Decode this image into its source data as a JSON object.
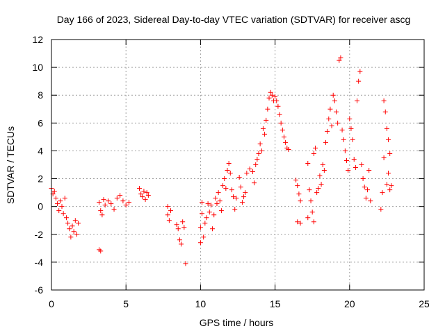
{
  "chart_data": {
    "type": "scatter",
    "title": "Day 166 of 2023, Sidereal Day-to-day VTEC variation (SDTVAR) for receiver ascg",
    "xlabel": "GPS time / hours",
    "ylabel": "SDTVAR / TECUs",
    "xlim": [
      0,
      25
    ],
    "ylim": [
      -6,
      12
    ],
    "xticks": [
      "0",
      "5",
      "10",
      "15",
      "20",
      "25"
    ],
    "yticks": [
      "-6",
      "-4",
      "-2",
      "0",
      "2",
      "4",
      "6",
      "8",
      "10",
      "12"
    ],
    "grid": true,
    "marker": "+",
    "series": [
      {
        "name": "SDTVAR",
        "color": "#ff0000",
        "points": [
          [
            0.0,
            1.3
          ],
          [
            0.1,
            0.9
          ],
          [
            0.2,
            1.1
          ],
          [
            0.3,
            0.6
          ],
          [
            0.4,
            0.2
          ],
          [
            0.5,
            -0.3
          ],
          [
            0.6,
            0.4
          ],
          [
            0.7,
            0.0
          ],
          [
            0.8,
            -0.5
          ],
          [
            0.9,
            0.6
          ],
          [
            1.0,
            -0.8
          ],
          [
            1.1,
            -1.2
          ],
          [
            1.2,
            -1.6
          ],
          [
            1.3,
            -2.2
          ],
          [
            1.4,
            -1.4
          ],
          [
            1.5,
            -1.8
          ],
          [
            1.6,
            -1.0
          ],
          [
            1.7,
            -2.0
          ],
          [
            1.8,
            -1.2
          ],
          [
            3.2,
            -3.1
          ],
          [
            3.3,
            -3.2
          ],
          [
            3.2,
            0.3
          ],
          [
            3.3,
            -0.3
          ],
          [
            3.4,
            -0.6
          ],
          [
            3.5,
            0.5
          ],
          [
            3.6,
            0.1
          ],
          [
            3.8,
            0.4
          ],
          [
            4.0,
            0.2
          ],
          [
            4.2,
            -0.2
          ],
          [
            4.4,
            0.6
          ],
          [
            4.6,
            0.8
          ],
          [
            4.8,
            0.4
          ],
          [
            5.0,
            0.1
          ],
          [
            5.2,
            0.3
          ],
          [
            5.9,
            1.3
          ],
          [
            6.0,
            0.9
          ],
          [
            6.1,
            0.7
          ],
          [
            6.2,
            1.1
          ],
          [
            6.3,
            0.5
          ],
          [
            6.4,
            1.0
          ],
          [
            6.5,
            0.8
          ],
          [
            7.8,
            0.0
          ],
          [
            7.8,
            -0.6
          ],
          [
            7.9,
            -1.0
          ],
          [
            8.0,
            -0.3
          ],
          [
            8.4,
            -1.3
          ],
          [
            8.5,
            -1.6
          ],
          [
            8.6,
            -2.4
          ],
          [
            8.7,
            -2.7
          ],
          [
            8.8,
            -1.1
          ],
          [
            8.9,
            -1.5
          ],
          [
            9.0,
            -4.1
          ],
          [
            10.0,
            -2.6
          ],
          [
            10.0,
            -1.5
          ],
          [
            10.1,
            -0.5
          ],
          [
            10.1,
            0.3
          ],
          [
            10.2,
            -2.2
          ],
          [
            10.3,
            -1.2
          ],
          [
            10.4,
            -0.8
          ],
          [
            10.5,
            0.2
          ],
          [
            10.6,
            -0.4
          ],
          [
            10.7,
            0.1
          ],
          [
            10.8,
            -1.6
          ],
          [
            10.9,
            -0.6
          ],
          [
            11.0,
            0.6
          ],
          [
            11.1,
            0.2
          ],
          [
            11.2,
            1.0
          ],
          [
            11.3,
            0.4
          ],
          [
            11.4,
            -0.3
          ],
          [
            11.5,
            1.5
          ],
          [
            11.6,
            2.0
          ],
          [
            11.7,
            1.3
          ],
          [
            11.8,
            2.6
          ],
          [
            11.9,
            3.1
          ],
          [
            12.0,
            2.4
          ],
          [
            12.1,
            1.2
          ],
          [
            12.2,
            0.7
          ],
          [
            12.3,
            -0.2
          ],
          [
            12.4,
            0.6
          ],
          [
            12.6,
            2.1
          ],
          [
            12.7,
            1.4
          ],
          [
            12.8,
            0.3
          ],
          [
            12.9,
            0.7
          ],
          [
            13.0,
            1.0
          ],
          [
            13.1,
            2.4
          ],
          [
            13.3,
            2.7
          ],
          [
            13.5,
            2.5
          ],
          [
            13.6,
            1.7
          ],
          [
            13.7,
            3.0
          ],
          [
            13.8,
            3.4
          ],
          [
            13.9,
            3.8
          ],
          [
            14.0,
            4.5
          ],
          [
            14.1,
            4.0
          ],
          [
            14.2,
            5.6
          ],
          [
            14.3,
            5.2
          ],
          [
            14.4,
            6.2
          ],
          [
            14.5,
            7.0
          ],
          [
            14.6,
            7.8
          ],
          [
            14.7,
            8.2
          ],
          [
            14.8,
            8.0
          ],
          [
            14.9,
            7.6
          ],
          [
            15.0,
            7.9
          ],
          [
            15.1,
            7.6
          ],
          [
            15.2,
            7.2
          ],
          [
            15.3,
            6.6
          ],
          [
            15.4,
            6.0
          ],
          [
            15.5,
            5.5
          ],
          [
            15.6,
            5.0
          ],
          [
            15.7,
            4.6
          ],
          [
            15.8,
            4.2
          ],
          [
            15.9,
            4.1
          ],
          [
            16.4,
            1.9
          ],
          [
            16.5,
            1.5
          ],
          [
            16.6,
            0.9
          ],
          [
            16.7,
            0.4
          ],
          [
            16.5,
            -1.1
          ],
          [
            16.7,
            -1.2
          ],
          [
            17.2,
            -0.8
          ],
          [
            17.2,
            3.1
          ],
          [
            17.3,
            1.2
          ],
          [
            17.4,
            0.4
          ],
          [
            17.5,
            -0.4
          ],
          [
            17.6,
            -1.1
          ],
          [
            17.6,
            3.8
          ],
          [
            17.7,
            4.2
          ],
          [
            17.8,
            1.0
          ],
          [
            17.9,
            1.3
          ],
          [
            18.0,
            2.2
          ],
          [
            18.1,
            1.6
          ],
          [
            18.2,
            3.0
          ],
          [
            18.3,
            2.6
          ],
          [
            18.4,
            4.6
          ],
          [
            18.5,
            5.4
          ],
          [
            18.6,
            6.3
          ],
          [
            18.7,
            7.0
          ],
          [
            18.8,
            5.8
          ],
          [
            18.9,
            8.0
          ],
          [
            19.0,
            7.6
          ],
          [
            19.1,
            6.8
          ],
          [
            19.2,
            6.0
          ],
          [
            19.3,
            10.5
          ],
          [
            19.4,
            10.7
          ],
          [
            19.5,
            5.5
          ],
          [
            19.6,
            4.8
          ],
          [
            19.7,
            4.0
          ],
          [
            19.8,
            3.3
          ],
          [
            19.9,
            2.6
          ],
          [
            20.0,
            6.3
          ],
          [
            20.1,
            5.6
          ],
          [
            20.2,
            4.8
          ],
          [
            20.3,
            3.4
          ],
          [
            20.4,
            2.8
          ],
          [
            20.5,
            7.6
          ],
          [
            20.6,
            9.0
          ],
          [
            20.7,
            9.7
          ],
          [
            20.8,
            3.0
          ],
          [
            20.9,
            2.0
          ],
          [
            21.0,
            1.4
          ],
          [
            21.1,
            0.6
          ],
          [
            21.2,
            1.2
          ],
          [
            21.3,
            2.6
          ],
          [
            21.4,
            0.4
          ],
          [
            22.1,
            -0.2
          ],
          [
            22.2,
            1.0
          ],
          [
            22.3,
            3.5
          ],
          [
            22.3,
            7.6
          ],
          [
            22.4,
            6.8
          ],
          [
            22.5,
            5.6
          ],
          [
            22.6,
            4.8
          ],
          [
            22.7,
            3.8
          ],
          [
            22.5,
            1.6
          ],
          [
            22.6,
            2.4
          ],
          [
            22.7,
            1.2
          ],
          [
            22.8,
            1.5
          ]
        ]
      }
    ]
  }
}
